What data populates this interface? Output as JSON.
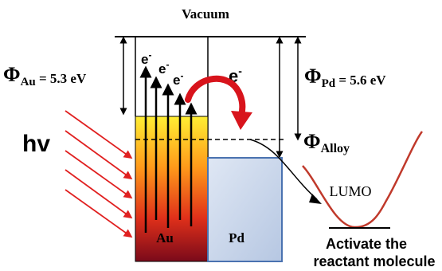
{
  "labels": {
    "vacuum": "Vacuum",
    "phi": "Φ",
    "phi_au_sub": "Au",
    "phi_au_value": " = 5.3 eV",
    "phi_pd_sub": "Pd",
    "phi_pd_value": " = 5.6 eV",
    "phi_alloy_sub": "Alloy",
    "hv": "hv",
    "electron": "e",
    "electron_sup": "-",
    "au": "Au",
    "pd": "Pd",
    "lumo": "LUMO",
    "activate_line1": "Activate the",
    "activate_line2": "reactant molecule"
  },
  "colors": {
    "light_rays": "#e02020",
    "transfer_arrow": "#d8141c",
    "au_top": "#ffee33",
    "au_bottom": "#7a0a1a",
    "pd_fill": "#c9d6ea",
    "pd_border": "#4a72b0",
    "lumo_curve": "#c0392b"
  }
}
